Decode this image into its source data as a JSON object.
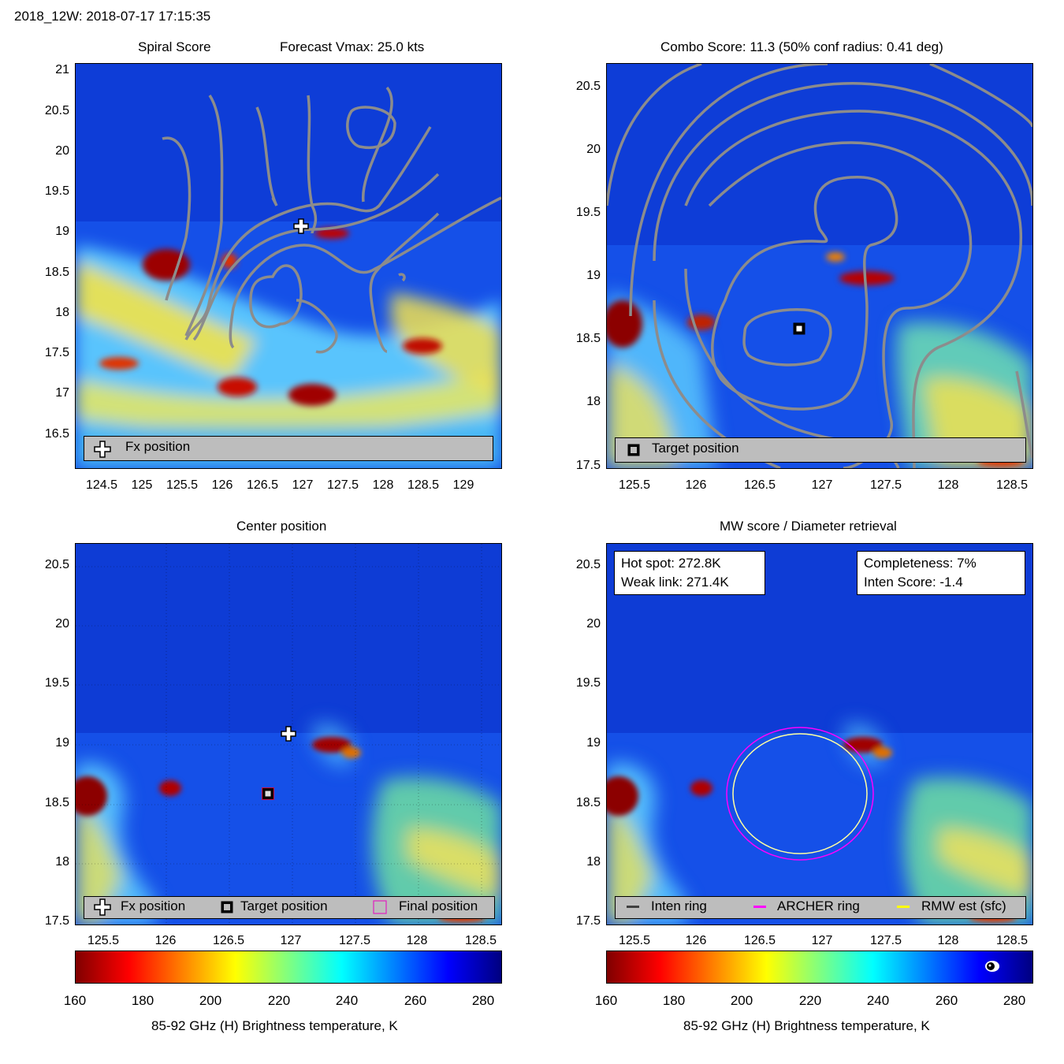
{
  "header": {
    "title": "2018_12W: 2018-07-17 17:15:35"
  },
  "colors": {
    "colormap": [
      "#800000",
      "#ff0000",
      "#ff8000",
      "#ffff00",
      "#80ff80",
      "#00ffff",
      "#0080ff",
      "#0000ff",
      "#000080"
    ],
    "contour": "#8c8c8c",
    "legend_bg": "#bdbdbd",
    "archer_ring": "#ff00ff",
    "rmw_ring": "#ffff00",
    "inten_ring": "#404040"
  },
  "panels": {
    "spiral": {
      "title_left": "Spiral Score",
      "title_right": "Forecast Vmax: 25.0 kts",
      "xticks": [
        "124.5",
        "125",
        "125.5",
        "126",
        "126.5",
        "127",
        "127.5",
        "128",
        "128.5",
        "129"
      ],
      "yticks": [
        "21",
        "20.5",
        "20",
        "19.5",
        "19",
        "18.5",
        "18",
        "17.5",
        "17",
        "16.5"
      ],
      "legend": {
        "fx_label": "Fx position"
      }
    },
    "combo": {
      "title": "Combo Score: 11.3  (50% conf radius: 0.41 deg)",
      "xticks": [
        "125.5",
        "126",
        "126.5",
        "127",
        "127.5",
        "128",
        "128.5"
      ],
      "yticks": [
        "20.5",
        "20",
        "19.5",
        "19",
        "18.5",
        "18",
        "17.5"
      ],
      "legend": {
        "target_label": "Target position"
      }
    },
    "center": {
      "title": "Center position",
      "xticks": [
        "125.5",
        "126",
        "126.5",
        "127",
        "127.5",
        "128",
        "128.5"
      ],
      "yticks": [
        "20.5",
        "20",
        "19.5",
        "19",
        "18.5",
        "18",
        "17.5"
      ],
      "legend": {
        "fx_label": "Fx position",
        "target_label": "Target position",
        "final_label": "Final position"
      }
    },
    "mw": {
      "title": "MW score / Diameter retrieval",
      "xticks": [
        "125.5",
        "126",
        "126.5",
        "127",
        "127.5",
        "128",
        "128.5"
      ],
      "yticks": [
        "20.5",
        "20",
        "19.5",
        "19",
        "18.5",
        "18",
        "17.5"
      ],
      "info_left": {
        "hot_spot": "Hot spot: 272.8K",
        "weak_link": "Weak link: 271.4K"
      },
      "info_right": {
        "completeness": "Completeness: 7%",
        "inten_score": "Inten Score: -1.4"
      },
      "legend": {
        "inten_label": "Inten ring",
        "archer_label": "ARCHER ring",
        "rmw_label": "RMW est (sfc)"
      }
    }
  },
  "colorbar": {
    "ticks": [
      "160",
      "180",
      "200",
      "220",
      "240",
      "260",
      "280"
    ],
    "label": "85-92 GHz (H) Brightness temperature, K"
  },
  "chart_data": [
    {
      "type": "heatmap",
      "title": "Spiral Score",
      "subtitle": "Forecast Vmax: 25.0 kts",
      "xlim": [
        124.15,
        129.45
      ],
      "ylim": [
        16.1,
        21.1
      ],
      "markers": [
        {
          "name": "Fx position",
          "x": 127.0,
          "y": 19.1
        }
      ]
    },
    {
      "type": "heatmap",
      "title": "Combo Score: 11.3  (50% conf radius: 0.41 deg)",
      "xlim": [
        125.3,
        128.7
      ],
      "ylim": [
        17.5,
        20.7
      ],
      "markers": [
        {
          "name": "Target position",
          "x": 126.8,
          "y": 18.6
        }
      ]
    },
    {
      "type": "heatmap",
      "title": "Center position",
      "xlim": [
        125.3,
        128.7
      ],
      "ylim": [
        17.5,
        20.7
      ],
      "markers": [
        {
          "name": "Fx position",
          "x": 127.0,
          "y": 19.1
        },
        {
          "name": "Target position",
          "x": 126.8,
          "y": 18.6
        },
        {
          "name": "Final position",
          "x": 126.8,
          "y": 18.6
        }
      ]
    },
    {
      "type": "heatmap",
      "title": "MW score / Diameter retrieval",
      "xlim": [
        125.3,
        128.7
      ],
      "ylim": [
        17.5,
        20.7
      ],
      "rings": [
        {
          "name": "ARCHER ring",
          "center": [
            126.8,
            18.6
          ],
          "radius_deg": 0.6
        },
        {
          "name": "RMW est (sfc)",
          "center": [
            126.8,
            18.6
          ],
          "radius_deg": 0.55
        }
      ],
      "colorbar": {
        "range": [
          160,
          285
        ],
        "label": "85-92 GHz (H) Brightness temperature, K"
      }
    }
  ]
}
